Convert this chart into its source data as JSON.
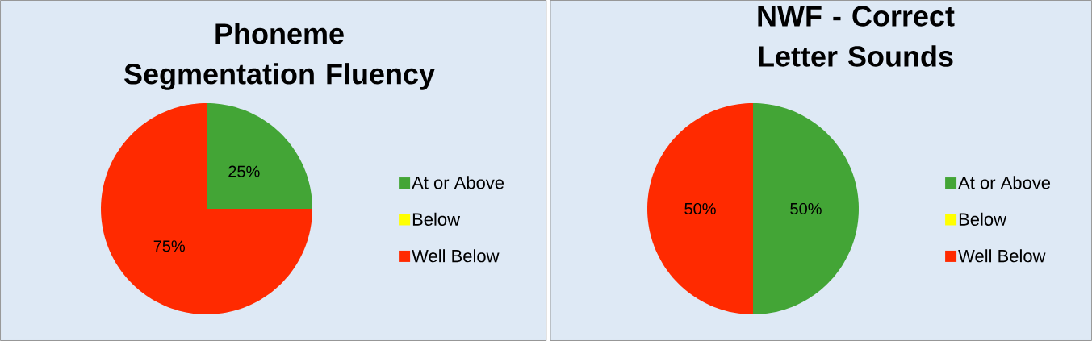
{
  "chart_data": [
    {
      "type": "pie",
      "title": "Phoneme Segmentation Fluency",
      "categories": [
        "At or Above",
        "Below",
        "Well Below"
      ],
      "values": [
        25,
        0,
        75
      ],
      "colors": [
        "#43a536",
        "#ffff00",
        "#ff2a00"
      ],
      "value_labels": [
        "25%",
        null,
        "75%"
      ],
      "legend": "right"
    },
    {
      "type": "pie",
      "title": "NWF - Correct Letter Sounds",
      "categories": [
        "At or Above",
        "Below",
        "Well Below"
      ],
      "values": [
        50,
        0,
        50
      ],
      "colors": [
        "#43a536",
        "#ffff00",
        "#ff2a00"
      ],
      "value_labels": [
        "50%",
        null,
        "50%"
      ],
      "legend": "right"
    }
  ]
}
